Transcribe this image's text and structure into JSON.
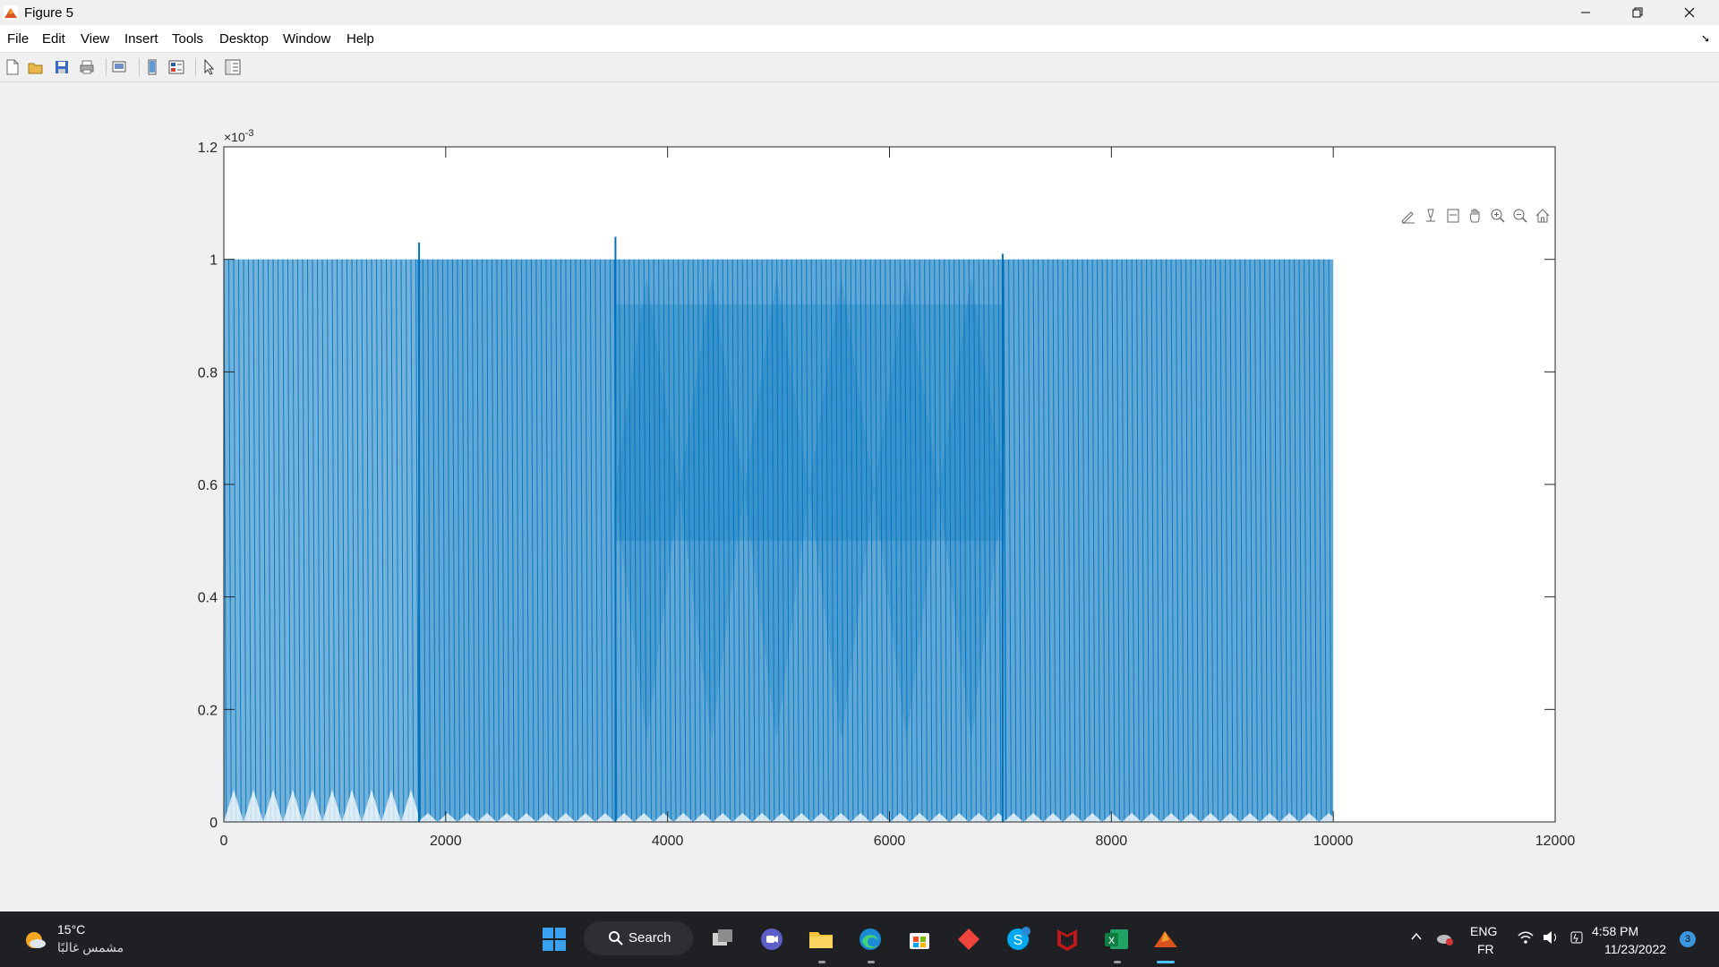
{
  "window": {
    "title": "Figure 5"
  },
  "menu": [
    "File",
    "Edit",
    "View",
    "Insert",
    "Tools",
    "Desktop",
    "Window",
    "Help"
  ],
  "toolbar_icons": [
    "new-figure-icon",
    "open-file-icon",
    "save-icon",
    "print-icon",
    "print-preview-icon",
    "hide-toolbar-icon",
    "insert-colorbar-icon",
    "pointer-icon",
    "property-editor-icon"
  ],
  "axes_toolbar_icons": [
    "brush-icon",
    "data-tip-icon",
    "export-icon",
    "pan-icon",
    "zoom-in-icon",
    "zoom-out-icon",
    "home-icon"
  ],
  "chart_data": {
    "type": "line",
    "title": "",
    "xlabel": "",
    "ylabel": "",
    "xlim": [
      0,
      12000
    ],
    "ylim": [
      0,
      0.0012
    ],
    "y_exponent_label": "×10",
    "y_exponent_value": "-3",
    "xticks": [
      "0",
      "2000",
      "4000",
      "6000",
      "8000",
      "10000",
      "12000"
    ],
    "yticks": [
      "0",
      "0.2",
      "0.4",
      "0.6",
      "0.8",
      "1",
      "1.2"
    ],
    "series_color": "#0072bd",
    "description_segments": [
      {
        "x": [
          0,
          1750
        ],
        "y_max": 0.001,
        "y_min": 0.0
      },
      {
        "x": [
          1750,
          3520
        ],
        "y_max": 0.001,
        "y_min": 5e-05
      },
      {
        "x": [
          3520,
          7030
        ],
        "y_max": 0.001,
        "y_min": 5e-05
      },
      {
        "x": [
          7030,
          10000
        ],
        "y_max": 0.001,
        "y_min": 5e-05
      }
    ],
    "spikes": [
      {
        "x": 1760,
        "y": 0.00103
      },
      {
        "x": 3530,
        "y": 0.00104
      },
      {
        "x": 7020,
        "y": 0.00101
      }
    ]
  },
  "taskbar": {
    "weather_temp": "15°C",
    "weather_desc": "مشمس غالبًا",
    "search_label": "Search",
    "lang_top": "ENG",
    "lang_bottom": "FR",
    "time": "4:58 PM",
    "date": "11/23/2022",
    "notification_count": "3"
  }
}
